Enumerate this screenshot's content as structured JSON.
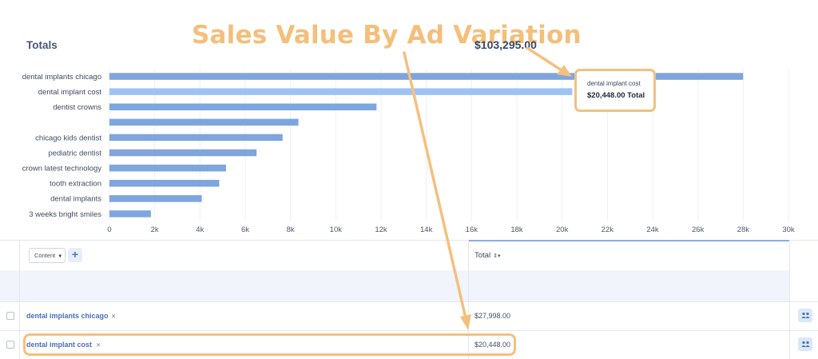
{
  "annotation": {
    "title": "Sales Value By Ad Variation"
  },
  "chart_data": {
    "type": "bar",
    "orientation": "horizontal",
    "categories": [
      "dental implants chicago",
      "dental implant cost",
      "dentist crowns",
      "",
      "chicago kids dentist",
      "pediatric dentist",
      "crown latest technology",
      "tooth extraction",
      "dental implants",
      "3 weeks bright smiles"
    ],
    "values": [
      27998,
      20448,
      11800,
      8350,
      7650,
      6500,
      5150,
      4850,
      4080,
      1830
    ],
    "xlim": [
      0,
      30000
    ],
    "xticks": [
      0,
      2000,
      4000,
      6000,
      8000,
      10000,
      12000,
      14000,
      16000,
      18000,
      20000,
      22000,
      24000,
      26000,
      28000,
      30000
    ],
    "xtick_labels": [
      "0",
      "2k",
      "4k",
      "6k",
      "8k",
      "10k",
      "12k",
      "14k",
      "16k",
      "18k",
      "20k",
      "22k",
      "24k",
      "26k",
      "28k",
      "30k"
    ],
    "highlighted_index": 1,
    "grid": true,
    "colors": {
      "bar": "#7ea5de",
      "bar_highlight": "#9ec3f3",
      "grid": "#eef1f6"
    }
  },
  "tooltip": {
    "label": "dental implant cost",
    "value": "$20,448.00 Total"
  },
  "table": {
    "dimension_select": "Content",
    "add_label": "+",
    "total_header": "Total",
    "totals_label": "Totals",
    "totals_value": "$103,295.00",
    "rows": [
      {
        "label": "dental implants chicago",
        "value": "$27,998.00"
      },
      {
        "label": "dental implant cost",
        "value": "$20,448.00"
      }
    ]
  },
  "icons": {
    "remove": "close-icon",
    "user": "users-icon",
    "sort": "sort-icon"
  },
  "accent": {
    "annotation": "#f4c07e"
  }
}
